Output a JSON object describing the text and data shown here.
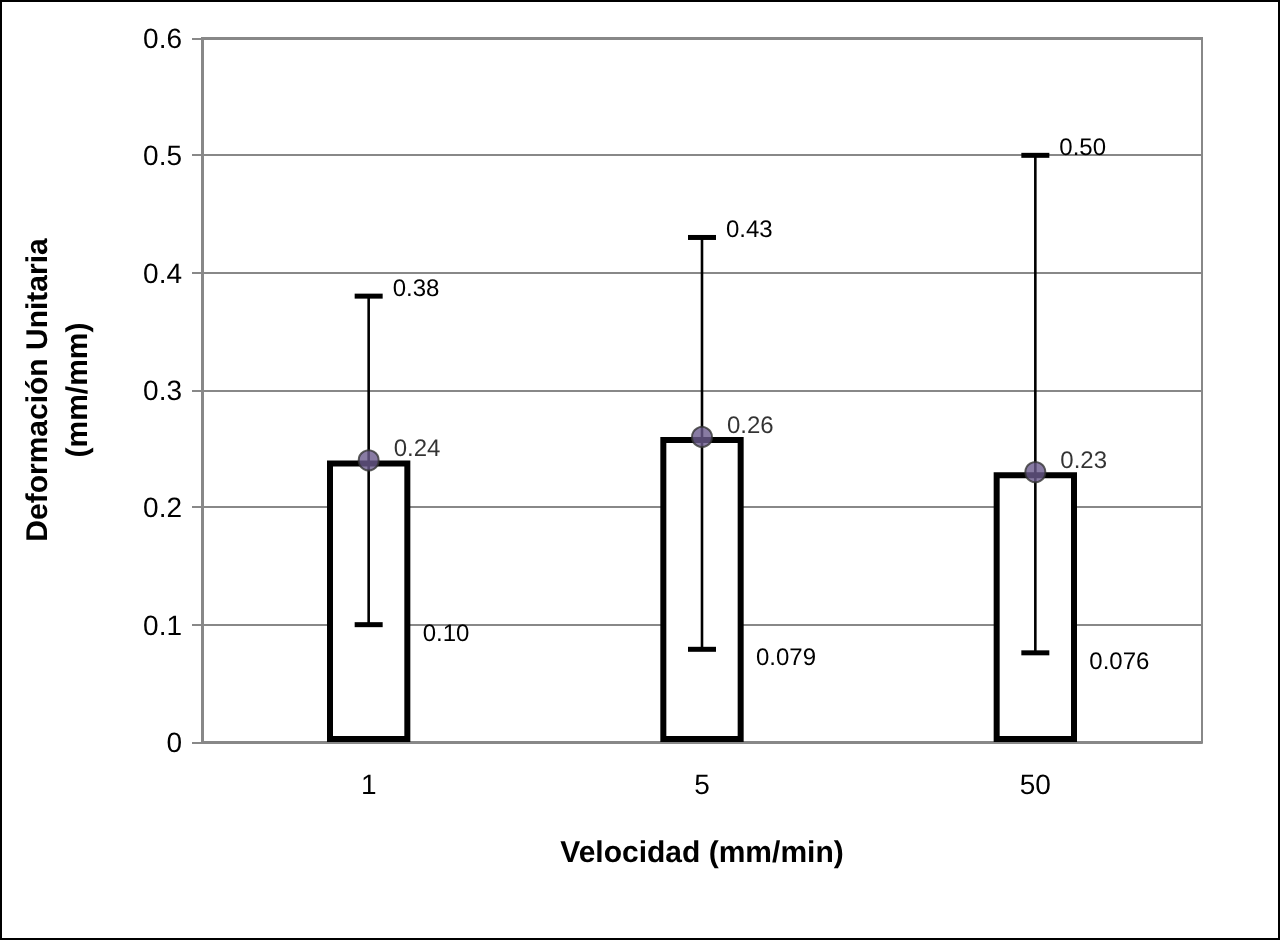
{
  "chart_data": {
    "type": "bar",
    "xlabel": "Velocidad (mm/min)",
    "ylabel": "Deformación Unitaria\n(mm/mm)",
    "categories": [
      "1",
      "5",
      "50"
    ],
    "series": [
      {
        "type": "bar",
        "color": "#ffffff",
        "values": [
          0.24,
          0.26,
          0.23
        ],
        "errors": [
          [
            0.1,
            0.38
          ],
          [
            0.079,
            0.43
          ],
          [
            0.076,
            0.5
          ]
        ]
      },
      {
        "type": "scatter",
        "color": "#6a5a8c",
        "x": [
          "1",
          "5",
          "50"
        ],
        "values": [
          0.24,
          0.26,
          0.23
        ],
        "value_labels": [
          "0.24",
          "0.26",
          "0.23"
        ],
        "marker": "circle"
      }
    ],
    "annotations": [
      {
        "text": "0.38",
        "x": "1",
        "y": 0.38
      },
      {
        "text": "0.10",
        "x": "1",
        "y": 0.1
      },
      {
        "text": "0.43",
        "x": "5",
        "y": 0.43
      },
      {
        "text": "0.079",
        "x": "5",
        "y": 0.079
      },
      {
        "text": "0.50",
        "x": "50",
        "y": 0.5
      },
      {
        "text": "0.076",
        "x": "50",
        "y": 0.076
      }
    ],
    "ylim": [
      0,
      0.6
    ],
    "yticks": [
      0,
      0.1,
      0.2,
      0.3,
      0.4,
      0.5,
      0.6
    ],
    "grid": "y"
  }
}
